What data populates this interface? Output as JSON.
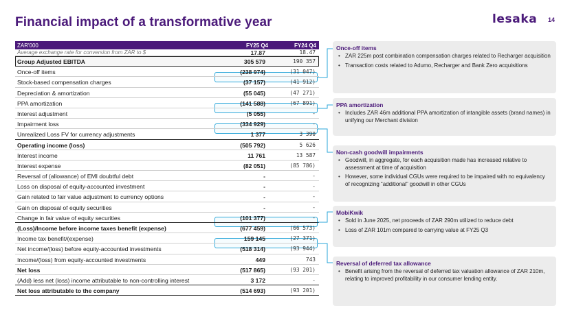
{
  "slide": {
    "title": "Financial impact of a transformative year",
    "logo_text": "lesaka",
    "page_number": "14"
  },
  "table": {
    "header": {
      "label": "ZAR'000",
      "col1": "FY25 Q4",
      "col2": "FY24 Q4"
    },
    "rows": [
      {
        "label": "Average exchange rate for conversion from ZAR to $",
        "v1": "17.87",
        "v2": "18.47"
      },
      {
        "label": "Group Adjusted EBITDA",
        "v1": "305 579",
        "v2": "190 357"
      },
      {
        "label": "Once-off items",
        "v1": "(238 974)",
        "v2": "(31 047)"
      },
      {
        "label": "Stock-based compensation charges",
        "v1": "(37 157)",
        "v2": "(41 912)"
      },
      {
        "label": "Depreciation & amortization",
        "v1": "(55 045)",
        "v2": "(47 271)"
      },
      {
        "label": "PPA amortization",
        "v1": "(141 588)",
        "v2": "(67 891)"
      },
      {
        "label": "Interest adjustment",
        "v1": "(5 055)",
        "v2": "-"
      },
      {
        "label": "Impairment loss",
        "v1": "(334 929)",
        "v2": "-"
      },
      {
        "label": "Unrealized Loss FV for currency adjustments",
        "v1": "1 377",
        "v2": "3 390"
      },
      {
        "label": "Operating income (loss)",
        "v1": "(505 792)",
        "v2": "5 626"
      },
      {
        "label": "Interest income",
        "v1": "11 761",
        "v2": "13 587"
      },
      {
        "label": "Interest expense",
        "v1": "(82 051)",
        "v2": "(85 786)"
      },
      {
        "label": "Reversal of (allowance) of EMI doubtful debt",
        "v1": "-",
        "v2": "-"
      },
      {
        "label": "Loss on disposal of equity-accounted investment",
        "v1": "-",
        "v2": "-"
      },
      {
        "label": "Gain related to fair value adjustment to currency options",
        "v1": "-",
        "v2": "-"
      },
      {
        "label": "Gain on disposal of equity securities",
        "v1": "-",
        "v2": "-"
      },
      {
        "label": "Change in fair value of equity securities",
        "v1": "(101 377)",
        "v2": "-"
      },
      {
        "label": "(Loss)/Income before income taxes benefit (expense)",
        "v1": "(677 459)",
        "v2": "(66 573)"
      },
      {
        "label": "Income tax benefit/(expense)",
        "v1": "159 145",
        "v2": "(27 371)"
      },
      {
        "label": "Net income/(loss) before equity-accounted investments",
        "v1": "(518 314)",
        "v2": "(93 944)"
      },
      {
        "label": "Income/(loss) from equity-accounted investments",
        "v1": "449",
        "v2": "743"
      },
      {
        "label": "Net loss",
        "v1": "(517 865)",
        "v2": "(93 201)"
      },
      {
        "label": "(Add) less net (loss) income attributable to non-controlling interest",
        "v1": "3 172",
        "v2": "-"
      },
      {
        "label": "Net loss attributable to the company",
        "v1": "(514 693)",
        "v2": "(93 201)"
      }
    ]
  },
  "callouts": [
    {
      "title": "Once-off items",
      "bullets": [
        "ZAR 225m post combination compensation charges related to Recharger acquisition",
        "Transaction costs related to Adumo, Recharger and Bank Zero acquisitions"
      ]
    },
    {
      "title": "PPA amortization",
      "bullets": [
        "Includes ZAR 46m additional PPA amortization of intangible assets (brand names) in unifying our Merchant division"
      ]
    },
    {
      "title": "Non-cash goodwill impairments",
      "bullets": [
        "Goodwill, in aggregate, for each acquisition made has increased relative to assessment at time of acquisition",
        "However, some individual CGUs were required to be impaired with no equivalency of recognizing “additional” goodwill in other CGUs"
      ]
    },
    {
      "title": "MobiKwik",
      "bullets": [
        "Sold in June 2025, net proceeds of ZAR 290m utilized to reduce debt",
        "Loss of ZAR 101m compared to carrying value at FY25 Q3"
      ]
    },
    {
      "title": "Reversal of deferred tax allowance",
      "bullets": [
        "Benefit arising from the reversal of deferred tax valuation allowance of ZAR 210m, relating to improved profitability in our consumer lending entity."
      ]
    }
  ],
  "colors": {
    "brand": "#4b1a7a",
    "highlight": "#2aa6d9",
    "callout_bg": "#ececec"
  }
}
